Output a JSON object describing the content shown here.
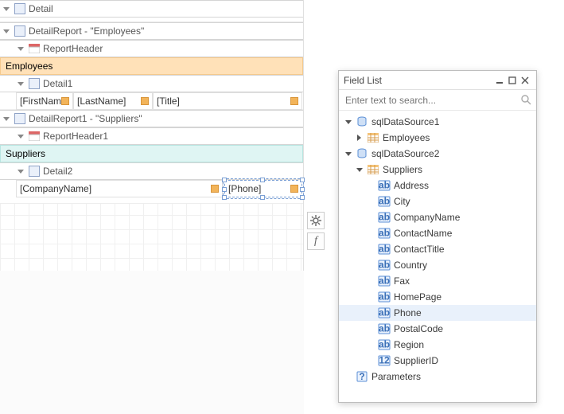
{
  "design": {
    "bands": {
      "detail": "Detail",
      "detailReport": "DetailReport - \"Employees\"",
      "reportHeader": "ReportHeader",
      "groupEmployees": "Employees",
      "detail1": "Detail1",
      "detailReport1": "DetailReport1 - \"Suppliers\"",
      "reportHeader1": "ReportHeader1",
      "groupSuppliers": "Suppliers",
      "detail2": "Detail2"
    },
    "fields": {
      "firstName": "[FirstNam",
      "lastName": "[LastName]",
      "title": "[Title]",
      "companyName": "[CompanyName]",
      "phone": "[Phone]"
    },
    "colors": {
      "employeesBg": "#ffe1b8",
      "employeesBorder": "#f5c98c",
      "suppliersBg": "#dff5f3",
      "suppliersBorder": "#b8e6e1",
      "tag": "#f2b45a",
      "selection": "#7a9fd4",
      "grid": "#f0f0f0"
    }
  },
  "panel": {
    "title": "Field List",
    "searchPlaceholder": "Enter text to search...",
    "tree": {
      "ds1": "sqlDataSource1",
      "employees": "Employees",
      "ds2": "sqlDataSource2",
      "suppliers": "Suppliers",
      "fields": [
        {
          "k": "address",
          "label": "Address",
          "type": "ab"
        },
        {
          "k": "city",
          "label": "City",
          "type": "ab"
        },
        {
          "k": "companyName",
          "label": "CompanyName",
          "type": "ab"
        },
        {
          "k": "contactName",
          "label": "ContactName",
          "type": "ab"
        },
        {
          "k": "contactTitle",
          "label": "ContactTitle",
          "type": "ab"
        },
        {
          "k": "country",
          "label": "Country",
          "type": "ab"
        },
        {
          "k": "fax",
          "label": "Fax",
          "type": "ab"
        },
        {
          "k": "homePage",
          "label": "HomePage",
          "type": "ab"
        },
        {
          "k": "phone",
          "label": "Phone",
          "type": "ab",
          "selected": true
        },
        {
          "k": "postalCode",
          "label": "PostalCode",
          "type": "ab"
        },
        {
          "k": "region",
          "label": "Region",
          "type": "ab"
        },
        {
          "k": "supplierId",
          "label": "SupplierID",
          "type": "12"
        }
      ],
      "parameters": "Parameters"
    },
    "colors": {
      "border": "#bdbdbd",
      "selectedRow": "#e9f1fb",
      "abIcon": {
        "border": "#5b8fd6",
        "fill": "#eaf2fd",
        "text": "#3a6fb7"
      },
      "numIcon": {
        "border": "#5b8fd6",
        "fill": "#eaf2fd",
        "text": "#3a6fb7"
      },
      "tblIcon": {
        "stroke": "#d49a4a",
        "fill": "#f5c47a"
      },
      "dbIcon": {
        "stroke": "#5b8fd6",
        "fill": "#cfe0f6"
      },
      "pmIcon": {
        "border": "#5b8fd6",
        "fill": "#eaf2fd",
        "text": "#3a6fb7"
      }
    }
  }
}
